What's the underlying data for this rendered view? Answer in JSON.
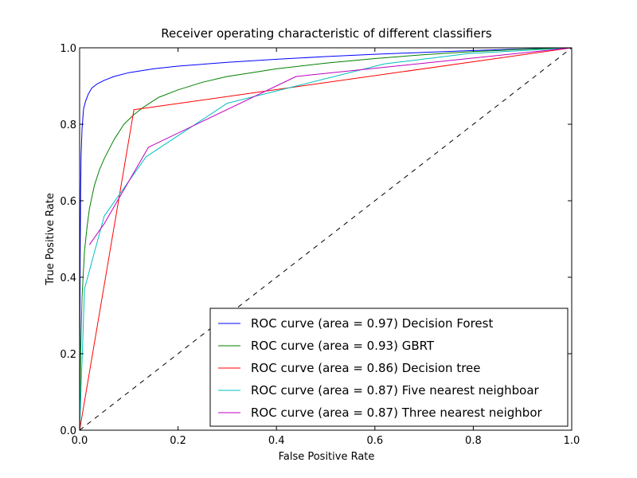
{
  "chart_data": {
    "type": "line",
    "title": "Receiver operating characteristic of different classifiers",
    "xlabel": "False Positive Rate",
    "ylabel": "True Positive Rate",
    "xlim": [
      0.0,
      1.0
    ],
    "ylim": [
      0.0,
      1.0
    ],
    "xticks": [
      "0.0",
      "0.2",
      "0.4",
      "0.6",
      "0.8",
      "1.0"
    ],
    "yticks": [
      "0.0",
      "0.2",
      "0.4",
      "0.6",
      "0.8",
      "1.0"
    ],
    "grid": false,
    "legend_position": "lower-right",
    "series": [
      {
        "name": "ROC curve (area = 0.97) Decision Forest",
        "color": "#0000ff",
        "x": [
          0.0,
          0.001,
          0.002,
          0.003,
          0.005,
          0.008,
          0.012,
          0.018,
          0.025,
          0.035,
          0.05,
          0.07,
          0.1,
          0.15,
          0.2,
          0.3,
          0.4,
          0.5,
          0.6,
          0.7,
          0.8,
          0.9,
          1.0
        ],
        "y": [
          0.0,
          0.44,
          0.62,
          0.72,
          0.79,
          0.84,
          0.86,
          0.88,
          0.895,
          0.905,
          0.915,
          0.925,
          0.935,
          0.945,
          0.952,
          0.962,
          0.97,
          0.977,
          0.983,
          0.988,
          0.993,
          0.997,
          1.0
        ]
      },
      {
        "name": "ROC curve (area = 0.93) GBRT",
        "color": "#008000",
        "x": [
          0.0,
          0.002,
          0.005,
          0.01,
          0.015,
          0.02,
          0.03,
          0.04,
          0.05,
          0.07,
          0.09,
          0.11,
          0.13,
          0.16,
          0.2,
          0.25,
          0.3,
          0.35,
          0.4,
          0.5,
          0.6,
          0.7,
          0.8,
          0.9,
          1.0
        ],
        "y": [
          0.0,
          0.2,
          0.35,
          0.47,
          0.53,
          0.58,
          0.64,
          0.68,
          0.71,
          0.76,
          0.8,
          0.825,
          0.845,
          0.87,
          0.89,
          0.91,
          0.925,
          0.935,
          0.945,
          0.96,
          0.972,
          0.982,
          0.99,
          0.996,
          1.0
        ]
      },
      {
        "name": "ROC curve (area = 0.86) Decision tree",
        "color": "#ff0000",
        "x": [
          0.0,
          0.11,
          0.11,
          1.0
        ],
        "y": [
          0.0,
          0.835,
          0.838,
          1.0
        ]
      },
      {
        "name": "ROC curve (area = 0.87) Five nearest neighboar",
        "color": "#00bfbf",
        "x": [
          0.0,
          0.01,
          0.05,
          0.135,
          0.3,
          0.44,
          0.62,
          0.79,
          1.0
        ],
        "y": [
          0.0,
          0.37,
          0.56,
          0.715,
          0.855,
          0.9,
          0.958,
          0.985,
          1.0
        ]
      },
      {
        "name": "ROC curve (area = 0.87) Three nearest neighbor",
        "color": "#bf00bf",
        "x": [
          0.02,
          0.05,
          0.14,
          0.44,
          1.0
        ],
        "y": [
          0.485,
          0.54,
          0.74,
          0.925,
          1.0
        ]
      },
      {
        "name": "",
        "color": "#000000",
        "style": "dashed",
        "x": [
          0.0,
          1.0
        ],
        "y": [
          0.0,
          1.0
        ]
      }
    ]
  }
}
